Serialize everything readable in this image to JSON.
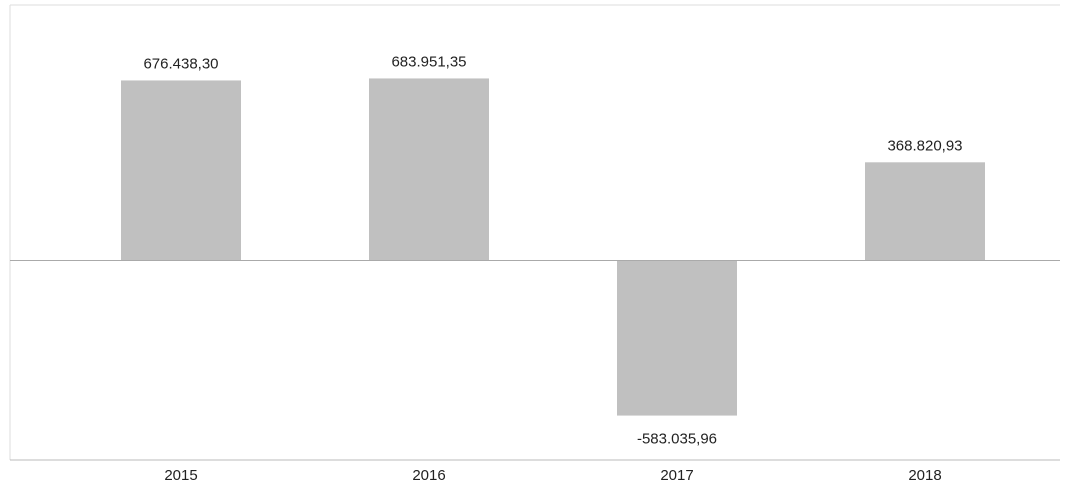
{
  "chart_data": {
    "type": "bar",
    "categories": [
      "2015",
      "2016",
      "2017",
      "2018"
    ],
    "values": [
      676438.3,
      683951.35,
      -583035.96,
      368820.93
    ],
    "value_labels": [
      "676.438,30",
      "683.951,35",
      "-583.035,96",
      "368.820,93"
    ],
    "color": "#c0c0c0",
    "ylim": [
      -750000,
      960000
    ]
  }
}
